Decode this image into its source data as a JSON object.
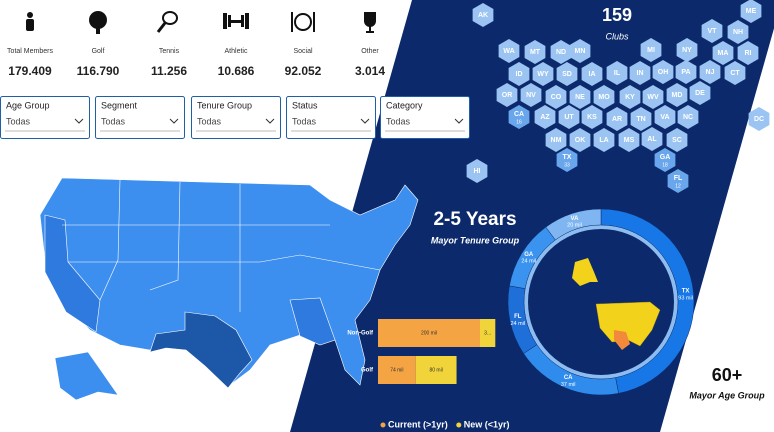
{
  "kpis": [
    {
      "label": "Total Members",
      "value": "179.409"
    },
    {
      "label": "Golf",
      "value": "116.790"
    },
    {
      "label": "Tennis",
      "value": "11.256"
    },
    {
      "label": "Athletic",
      "value": "10.686"
    },
    {
      "label": "Social",
      "value": "92.052"
    },
    {
      "label": "Other",
      "value": "3.014"
    }
  ],
  "filters": [
    {
      "label": "Age Group",
      "value": "Todas"
    },
    {
      "label": "Segment",
      "value": "Todas"
    },
    {
      "label": "Tenure Group",
      "value": "Todas"
    },
    {
      "label": "Status",
      "value": "Todas"
    },
    {
      "label": "Category",
      "value": "Todas"
    }
  ],
  "hex_map": {
    "count": 159,
    "label": "Clubs",
    "states": [
      {
        "code": "AK"
      },
      {
        "code": "ME"
      },
      {
        "code": "VT"
      },
      {
        "code": "NH"
      },
      {
        "code": "WA"
      },
      {
        "code": "MT"
      },
      {
        "code": "ND"
      },
      {
        "code": "MN"
      },
      {
        "code": "MI"
      },
      {
        "code": "NY"
      },
      {
        "code": "MA"
      },
      {
        "code": "RI"
      },
      {
        "code": "ID"
      },
      {
        "code": "WY"
      },
      {
        "code": "SD"
      },
      {
        "code": "IA"
      },
      {
        "code": "IL"
      },
      {
        "code": "IN"
      },
      {
        "code": "OH"
      },
      {
        "code": "PA"
      },
      {
        "code": "NJ"
      },
      {
        "code": "CT"
      },
      {
        "code": "OR"
      },
      {
        "code": "NV"
      },
      {
        "code": "CO"
      },
      {
        "code": "NE"
      },
      {
        "code": "MO"
      },
      {
        "code": "KY"
      },
      {
        "code": "WV"
      },
      {
        "code": "MD"
      },
      {
        "code": "DE"
      },
      {
        "code": "CA",
        "value": 16
      },
      {
        "code": "AZ"
      },
      {
        "code": "UT"
      },
      {
        "code": "KS"
      },
      {
        "code": "AR"
      },
      {
        "code": "TN"
      },
      {
        "code": "VA"
      },
      {
        "code": "NC"
      },
      {
        "code": "DC"
      },
      {
        "code": "NM"
      },
      {
        "code": "OK"
      },
      {
        "code": "LA"
      },
      {
        "code": "MS"
      },
      {
        "code": "AL"
      },
      {
        "code": "SC"
      },
      {
        "code": "TX",
        "value": 33
      },
      {
        "code": "GA",
        "value": 18
      },
      {
        "code": "HI"
      },
      {
        "code": "FL",
        "value": 12
      }
    ]
  },
  "tenure": {
    "title": "2-5 Years",
    "subtitle": "Mayor Tenure Group"
  },
  "age": {
    "title": "60+",
    "subtitle": "Mayor Age Group"
  },
  "chart_data": [
    {
      "type": "donut",
      "categories": [
        "TX",
        "CA",
        "FL",
        "GA",
        "VA"
      ],
      "values": [
        93,
        37,
        24,
        24,
        20
      ],
      "value_labels": [
        "93 mil",
        "37 mil",
        "24 mil",
        "24 mil",
        "20 mil"
      ],
      "colors": [
        "#1877e6",
        "#2f8bec",
        "#1f6fd8",
        "#3a93ee",
        "#7fb6f2"
      ]
    },
    {
      "type": "bar",
      "orientation": "horizontal",
      "stacked": true,
      "categories": [
        "Non-Golf",
        "Golf"
      ],
      "series": [
        {
          "name": "Current (>1yr)",
          "color": "#f5a443",
          "values": [
            200,
            74
          ],
          "value_labels": [
            "200 mil",
            "74 mil"
          ]
        },
        {
          "name": "New (<1yr)",
          "color": "#f0d43a",
          "values": [
            30,
            80
          ],
          "value_labels": [
            "3...",
            "80 mil"
          ]
        }
      ]
    }
  ]
}
